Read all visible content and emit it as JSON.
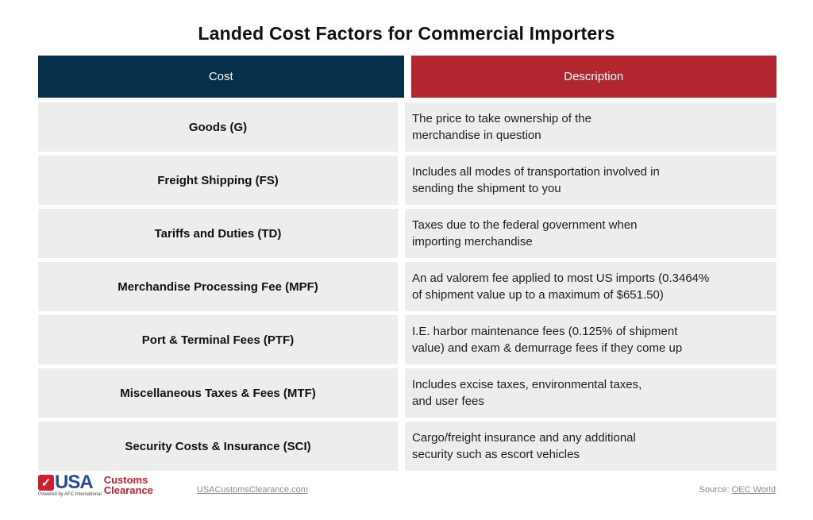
{
  "title": "Landed Cost Factors for Commercial Importers",
  "chart_data": {
    "type": "table",
    "title": "Landed Cost Factors for Commercial Importers",
    "columns": [
      "Cost",
      "Description"
    ],
    "rows": [
      [
        "Goods (G)",
        "The price to take ownership of the\nmerchandise in question"
      ],
      [
        "Freight Shipping (FS)",
        "Includes all modes of transportation involved in\nsending the shipment to you"
      ],
      [
        "Tariffs and Duties (TD)",
        "Taxes due to the federal government when\nimporting merchandise"
      ],
      [
        "Merchandise Processing Fee (MPF)",
        "An ad valorem fee applied to most US imports (0.3464%\nof shipment value up to a maximum of $651.50)"
      ],
      [
        "Port & Terminal Fees (PTF)",
        "I.E. harbor maintenance fees (0.125% of shipment\nvalue) and exam & demurrage fees if they come up"
      ],
      [
        "Miscellaneous Taxes & Fees (MTF)",
        "Includes excise taxes, environmental taxes,\nand user fees"
      ],
      [
        "Security Costs & Insurance (SCI)",
        "Cargo/freight insurance and any additional\nsecurity such as escort vehicles"
      ]
    ],
    "layout": {
      "header_colors": [
        "#062F4A",
        "#B2262F"
      ],
      "row_background": "#EDEDED",
      "grid": false
    }
  },
  "footer": {
    "logo": {
      "check_icon": "✓",
      "usa": "USA",
      "customs": "Customs",
      "clearance": "Clearance",
      "powered_by": "Powered by AFC International"
    },
    "website_link": "USACustomsClearance.com",
    "source_label": "Source: ",
    "source_link": "OEC World"
  },
  "colors": {
    "header_navy": "#062F4A",
    "header_red": "#B2262F",
    "row_background": "#EDEDED",
    "logo_blue": "#264D9C",
    "logo_red": "#C8232C"
  }
}
